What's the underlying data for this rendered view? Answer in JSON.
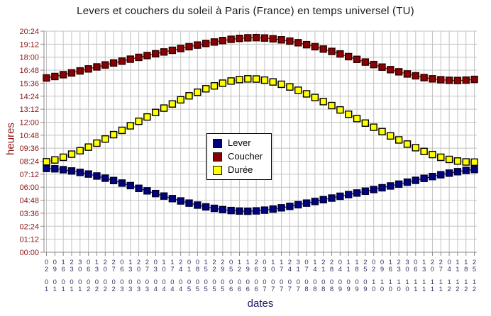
{
  "title": "Levers et couchers du soleil à Paris (France) en temps universel (TU)",
  "y_axis_label": "heures",
  "x_axis_label": "dates",
  "colors": {
    "background": "#ffffff",
    "grid": "#c2c2c2",
    "axis": "#8a8a8a",
    "y_tick_text": "#8b1414",
    "x_tick_text": "#333366",
    "title_text": "#1a1a1a"
  },
  "chart_data": {
    "type": "line",
    "title": "Levers et couchers du soleil à Paris (France) en temps universel (TU)",
    "xlabel": "dates",
    "ylabel": "heures",
    "marker": "square",
    "grid": true,
    "legend_position": "inside-center-left",
    "ylim": [
      "00:00",
      "20:24"
    ],
    "yticks": [
      "00:00",
      "01:12",
      "02:24",
      "03:36",
      "04:48",
      "06:00",
      "07:12",
      "08:24",
      "09:36",
      "10:48",
      "12:00",
      "13:12",
      "14:24",
      "15:36",
      "16:48",
      "18:00",
      "19:12",
      "20:24"
    ],
    "x": [
      "02/01",
      "09/01",
      "16/01",
      "23/01",
      "30/01",
      "06/02",
      "13/02",
      "20/02",
      "27/02",
      "06/03",
      "13/03",
      "20/03",
      "27/03",
      "03/04",
      "10/04",
      "17/04",
      "24/04",
      "01/05",
      "08/05",
      "15/05",
      "22/05",
      "29/05",
      "05/06",
      "12/06",
      "19/06",
      "26/06",
      "03/07",
      "10/07",
      "17/07",
      "24/07",
      "31/07",
      "07/08",
      "14/08",
      "21/08",
      "28/08",
      "04/09",
      "11/09",
      "18/09",
      "25/09",
      "02/10",
      "09/10",
      "16/10",
      "23/10",
      "30/10",
      "06/11",
      "13/11",
      "20/11",
      "27/11",
      "04/12",
      "11/12",
      "18/12",
      "25/12"
    ],
    "series": [
      {
        "name": "Lever",
        "fill": "#000080",
        "stroke": "#00002e",
        "line": "#000080",
        "values": [
          "07:44",
          "07:42",
          "07:37",
          "07:30",
          "07:22",
          "07:13",
          "07:02",
          "06:50",
          "06:37",
          "06:23",
          "06:09",
          "05:54",
          "05:40",
          "05:25",
          "05:11",
          "04:57",
          "04:44",
          "04:32",
          "04:21",
          "04:11",
          "04:03",
          "03:56",
          "03:51",
          "03:48",
          "03:47",
          "03:49",
          "03:53",
          "03:59",
          "04:06",
          "04:14",
          "04:23",
          "04:32",
          "04:41",
          "04:51",
          "05:00",
          "05:10",
          "05:19",
          "05:28",
          "05:38",
          "05:47",
          "05:57",
          "06:07",
          "06:17",
          "06:28",
          "06:38",
          "06:49",
          "06:59",
          "07:09",
          "07:18",
          "07:26",
          "07:33",
          "07:38"
        ]
      },
      {
        "name": "Coucher",
        "fill": "#8b0000",
        "stroke": "#2e0000",
        "line": "#8b0000",
        "values": [
          "16:05",
          "16:13",
          "16:23",
          "16:33",
          "16:44",
          "16:55",
          "17:06",
          "17:17",
          "17:28",
          "17:38",
          "17:49",
          "17:59",
          "18:09",
          "18:19",
          "18:29",
          "18:38",
          "18:48",
          "18:58",
          "19:07",
          "19:16",
          "19:24",
          "19:32",
          "19:39",
          "19:44",
          "19:47",
          "19:48",
          "19:46",
          "19:42",
          "19:36",
          "19:29",
          "19:20",
          "19:09",
          "18:58",
          "18:45",
          "18:32",
          "18:18",
          "18:03",
          "17:48",
          "17:33",
          "17:19",
          "17:05",
          "16:51",
          "16:39",
          "16:27",
          "16:17",
          "16:07",
          "16:00",
          "15:55",
          "15:52",
          "15:51",
          "15:53",
          "15:57"
        ]
      },
      {
        "name": "Durée",
        "fill": "#ffff00",
        "stroke": "#000000",
        "line": "#cccc00",
        "values": [
          "08:21",
          "08:31",
          "08:46",
          "09:03",
          "09:22",
          "09:42",
          "10:04",
          "10:27",
          "10:51",
          "11:15",
          "11:40",
          "12:05",
          "12:29",
          "12:54",
          "13:18",
          "13:41",
          "14:04",
          "14:26",
          "14:46",
          "15:05",
          "15:21",
          "15:36",
          "15:48",
          "15:56",
          "16:00",
          "15:59",
          "15:53",
          "15:43",
          "15:30",
          "15:15",
          "14:57",
          "14:37",
          "14:17",
          "13:54",
          "13:32",
          "13:08",
          "12:44",
          "12:20",
          "11:55",
          "11:32",
          "11:08",
          "10:44",
          "10:22",
          "09:59",
          "09:39",
          "09:18",
          "09:01",
          "08:46",
          "08:34",
          "08:25",
          "08:20",
          "08:19"
        ]
      }
    ]
  }
}
